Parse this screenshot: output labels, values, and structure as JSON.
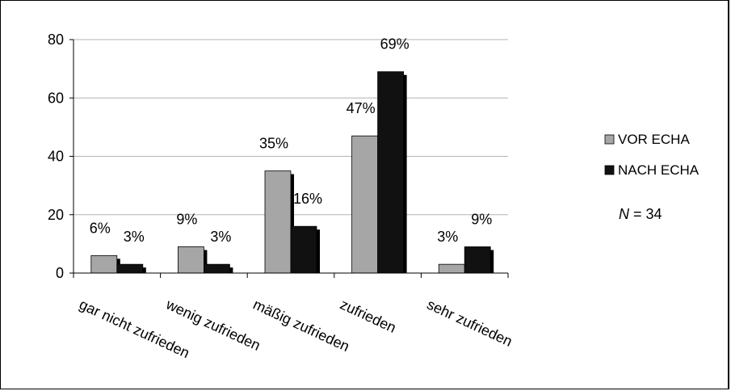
{
  "chart_data": {
    "type": "bar",
    "categories": [
      "gar nicht zufrieden",
      "wenig zufrieden",
      "mäßig zufrieden",
      "zufrieden",
      "sehr zufrieden"
    ],
    "series": [
      {
        "name": "VOR ECHA",
        "values": [
          6,
          9,
          35,
          47,
          3
        ],
        "labels": [
          "6%",
          "9%",
          "35%",
          "47%",
          "3%"
        ],
        "color": "#a6a6a6"
      },
      {
        "name": "NACH ECHA",
        "values": [
          3,
          3,
          16,
          69,
          9
        ],
        "labels": [
          "3%",
          "3%",
          "16%",
          "69%",
          "9%"
        ],
        "color": "#111111"
      }
    ],
    "yticks": [
      0,
      20,
      40,
      60,
      80
    ],
    "ylim": [
      0,
      80
    ],
    "grid": true,
    "legend_position": "right",
    "note": {
      "italic": "N",
      "rest": " = 34"
    }
  }
}
